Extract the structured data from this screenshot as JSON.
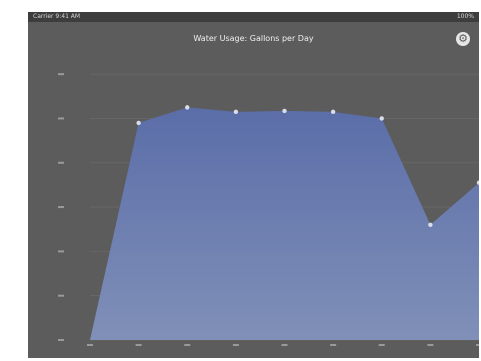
{
  "status_bar": {
    "left_text": "Carrier 9:41 AM",
    "right_text": "100%"
  },
  "settings_icon": "gear-icon",
  "colors": {
    "background": "#5c5c5c",
    "area_top": "#5a6da8",
    "area_bottom": "#8090b8",
    "grid": "#6c6c6c",
    "point": "#d8dde8"
  },
  "chart_data": {
    "type": "area",
    "title": "Water Usage: Gallons per Day",
    "xlabel": "",
    "ylabel": "",
    "categories": [
      "",
      "",
      "",
      "",
      "",
      "",
      "",
      "",
      ""
    ],
    "values": [
      0,
      490,
      525,
      515,
      517,
      515,
      500,
      260,
      355
    ],
    "ylim": [
      0,
      650
    ],
    "grid": true,
    "legend": "none"
  }
}
